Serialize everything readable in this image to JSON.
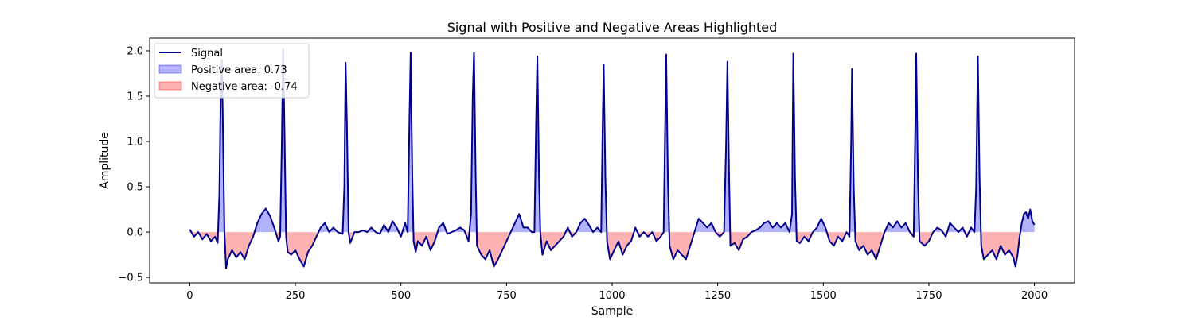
{
  "chart_data": {
    "type": "line",
    "title": "Signal with Positive and Negative Areas Highlighted",
    "xlabel": "Sample",
    "ylabel": "Amplitude",
    "xlim": [
      -95,
      2095
    ],
    "ylim": [
      -0.56,
      2.14
    ],
    "x_ticks": [
      0,
      250,
      500,
      750,
      1000,
      1250,
      1500,
      1750,
      2000
    ],
    "y_ticks": [
      -0.5,
      0.0,
      0.5,
      1.0,
      1.5,
      2.0
    ],
    "grid": false,
    "legend_position": "top-left",
    "colors": {
      "signal": "#00008b",
      "positive_fill": "#0000ff",
      "negative_fill": "#ff0000",
      "fill_opacity": 0.3
    },
    "legend": [
      {
        "label": "Signal",
        "kind": "line"
      },
      {
        "label": "Positive area: 0.73",
        "kind": "positive"
      },
      {
        "label": "Negative area: -0.74",
        "kind": "negative"
      }
    ],
    "series": [
      {
        "name": "Signal",
        "points": [
          [
            0,
            0.03
          ],
          [
            10,
            -0.05
          ],
          [
            20,
            0.0
          ],
          [
            30,
            -0.08
          ],
          [
            40,
            -0.02
          ],
          [
            50,
            -0.1
          ],
          [
            60,
            -0.05
          ],
          [
            66,
            -0.12
          ],
          [
            70,
            0.4
          ],
          [
            73,
            1.45
          ],
          [
            76,
            1.9
          ],
          [
            79,
            1.0
          ],
          [
            82,
            0.0
          ],
          [
            86,
            -0.4
          ],
          [
            90,
            -0.3
          ],
          [
            100,
            -0.2
          ],
          [
            110,
            -0.28
          ],
          [
            120,
            -0.22
          ],
          [
            130,
            -0.3
          ],
          [
            140,
            -0.15
          ],
          [
            150,
            -0.05
          ],
          [
            160,
            0.1
          ],
          [
            170,
            0.2
          ],
          [
            180,
            0.26
          ],
          [
            190,
            0.18
          ],
          [
            200,
            0.05
          ],
          [
            210,
            -0.1
          ],
          [
            214,
            -0.05
          ],
          [
            218,
            1.0
          ],
          [
            221,
            2.02
          ],
          [
            224,
            1.2
          ],
          [
            228,
            -0.05
          ],
          [
            232,
            -0.22
          ],
          [
            240,
            -0.25
          ],
          [
            250,
            -0.2
          ],
          [
            260,
            -0.3
          ],
          [
            270,
            -0.38
          ],
          [
            280,
            -0.22
          ],
          [
            290,
            -0.15
          ],
          [
            300,
            -0.05
          ],
          [
            310,
            0.05
          ],
          [
            320,
            0.1
          ],
          [
            330,
            0.0
          ],
          [
            340,
            0.05
          ],
          [
            350,
            0.0
          ],
          [
            362,
            -0.02
          ],
          [
            366,
            0.5
          ],
          [
            369,
            1.87
          ],
          [
            372,
            1.2
          ],
          [
            376,
            0.0
          ],
          [
            380,
            -0.12
          ],
          [
            390,
            0.0
          ],
          [
            400,
            0.0
          ],
          [
            410,
            0.02
          ],
          [
            420,
            0.0
          ],
          [
            430,
            0.05
          ],
          [
            440,
            0.0
          ],
          [
            450,
            -0.02
          ],
          [
            460,
            0.08
          ],
          [
            470,
            0.0
          ],
          [
            480,
            0.12
          ],
          [
            490,
            0.05
          ],
          [
            500,
            -0.05
          ],
          [
            510,
            0.1
          ],
          [
            516,
            0.0
          ],
          [
            520,
            1.2
          ],
          [
            523,
            1.98
          ],
          [
            527,
            0.6
          ],
          [
            530,
            -0.1
          ],
          [
            535,
            -0.22
          ],
          [
            540,
            -0.1
          ],
          [
            550,
            -0.15
          ],
          [
            560,
            -0.05
          ],
          [
            570,
            -0.2
          ],
          [
            580,
            -0.1
          ],
          [
            590,
            0.05
          ],
          [
            600,
            0.1
          ],
          [
            610,
            -0.02
          ],
          [
            620,
            0.0
          ],
          [
            630,
            0.02
          ],
          [
            640,
            0.05
          ],
          [
            650,
            0.02
          ],
          [
            660,
            -0.1
          ],
          [
            666,
            0.2
          ],
          [
            670,
            1.5
          ],
          [
            673,
            1.98
          ],
          [
            677,
            0.6
          ],
          [
            680,
            -0.15
          ],
          [
            690,
            -0.25
          ],
          [
            700,
            -0.3
          ],
          [
            710,
            -0.2
          ],
          [
            720,
            -0.38
          ],
          [
            730,
            -0.3
          ],
          [
            740,
            -0.2
          ],
          [
            750,
            -0.1
          ],
          [
            760,
            0.0
          ],
          [
            770,
            0.1
          ],
          [
            780,
            0.2
          ],
          [
            790,
            0.05
          ],
          [
            800,
            0.05
          ],
          [
            810,
            0.0
          ],
          [
            816,
            0.0
          ],
          [
            820,
            1.2
          ],
          [
            823,
            1.94
          ],
          [
            827,
            0.6
          ],
          [
            830,
            0.0
          ],
          [
            835,
            -0.25
          ],
          [
            845,
            -0.1
          ],
          [
            855,
            -0.2
          ],
          [
            865,
            -0.15
          ],
          [
            875,
            -0.1
          ],
          [
            885,
            -0.05
          ],
          [
            895,
            0.05
          ],
          [
            905,
            -0.05
          ],
          [
            915,
            0.0
          ],
          [
            925,
            0.1
          ],
          [
            935,
            0.15
          ],
          [
            945,
            0.08
          ],
          [
            955,
            0.0
          ],
          [
            965,
            0.05
          ],
          [
            974,
            0.0
          ],
          [
            978,
            1.3
          ],
          [
            980,
            1.85
          ],
          [
            984,
            0.6
          ],
          [
            988,
            -0.1
          ],
          [
            995,
            -0.3
          ],
          [
            1005,
            -0.2
          ],
          [
            1015,
            -0.1
          ],
          [
            1025,
            -0.25
          ],
          [
            1035,
            -0.15
          ],
          [
            1045,
            -0.1
          ],
          [
            1055,
            0.05
          ],
          [
            1065,
            -0.05
          ],
          [
            1075,
            0.0
          ],
          [
            1085,
            -0.05
          ],
          [
            1095,
            0.0
          ],
          [
            1105,
            -0.1
          ],
          [
            1115,
            -0.05
          ],
          [
            1122,
            0.0
          ],
          [
            1126,
            1.3
          ],
          [
            1128,
            1.96
          ],
          [
            1132,
            0.6
          ],
          [
            1136,
            -0.15
          ],
          [
            1145,
            -0.3
          ],
          [
            1155,
            -0.2
          ],
          [
            1165,
            -0.25
          ],
          [
            1175,
            -0.3
          ],
          [
            1185,
            -0.15
          ],
          [
            1195,
            0.0
          ],
          [
            1205,
            0.15
          ],
          [
            1215,
            0.1
          ],
          [
            1225,
            0.05
          ],
          [
            1235,
            0.1
          ],
          [
            1245,
            0.0
          ],
          [
            1255,
            -0.05
          ],
          [
            1265,
            0.0
          ],
          [
            1270,
            1.0
          ],
          [
            1273,
            1.88
          ],
          [
            1277,
            0.6
          ],
          [
            1280,
            -0.15
          ],
          [
            1290,
            -0.12
          ],
          [
            1300,
            -0.2
          ],
          [
            1310,
            -0.08
          ],
          [
            1320,
            -0.05
          ],
          [
            1330,
            0.0
          ],
          [
            1340,
            0.02
          ],
          [
            1350,
            0.05
          ],
          [
            1360,
            0.1
          ],
          [
            1370,
            0.12
          ],
          [
            1380,
            0.05
          ],
          [
            1390,
            0.1
          ],
          [
            1400,
            0.05
          ],
          [
            1410,
            0.1
          ],
          [
            1420,
            0.0
          ],
          [
            1426,
            0.2
          ],
          [
            1429,
            1.97
          ],
          [
            1433,
            0.6
          ],
          [
            1437,
            -0.1
          ],
          [
            1445,
            -0.12
          ],
          [
            1455,
            -0.05
          ],
          [
            1465,
            -0.1
          ],
          [
            1475,
            0.0
          ],
          [
            1485,
            0.05
          ],
          [
            1495,
            0.15
          ],
          [
            1505,
            0.05
          ],
          [
            1515,
            -0.1
          ],
          [
            1525,
            -0.15
          ],
          [
            1535,
            -0.05
          ],
          [
            1545,
            -0.1
          ],
          [
            1555,
            0.0
          ],
          [
            1562,
            -0.05
          ],
          [
            1566,
            1.0
          ],
          [
            1568,
            1.8
          ],
          [
            1572,
            0.5
          ],
          [
            1576,
            -0.1
          ],
          [
            1585,
            -0.2
          ],
          [
            1595,
            -0.15
          ],
          [
            1605,
            -0.25
          ],
          [
            1615,
            -0.2
          ],
          [
            1625,
            -0.3
          ],
          [
            1635,
            -0.15
          ],
          [
            1645,
            0.0
          ],
          [
            1655,
            0.1
          ],
          [
            1665,
            0.05
          ],
          [
            1675,
            0.12
          ],
          [
            1685,
            0.05
          ],
          [
            1695,
            0.1
          ],
          [
            1705,
            0.0
          ],
          [
            1714,
            -0.05
          ],
          [
            1718,
            1.2
          ],
          [
            1720,
            1.97
          ],
          [
            1724,
            0.6
          ],
          [
            1728,
            -0.1
          ],
          [
            1740,
            -0.15
          ],
          [
            1750,
            -0.1
          ],
          [
            1760,
            0.0
          ],
          [
            1770,
            0.05
          ],
          [
            1780,
            0.02
          ],
          [
            1790,
            -0.05
          ],
          [
            1800,
            0.1
          ],
          [
            1810,
            0.05
          ],
          [
            1820,
            0.0
          ],
          [
            1830,
            0.05
          ],
          [
            1840,
            -0.05
          ],
          [
            1850,
            0.05
          ],
          [
            1858,
            0.0
          ],
          [
            1862,
            0.5
          ],
          [
            1866,
            1.94
          ],
          [
            1870,
            0.6
          ],
          [
            1874,
            -0.15
          ],
          [
            1880,
            -0.3
          ],
          [
            1890,
            -0.25
          ],
          [
            1900,
            -0.2
          ],
          [
            1910,
            -0.3
          ],
          [
            1920,
            -0.15
          ],
          [
            1930,
            -0.25
          ],
          [
            1940,
            -0.2
          ],
          [
            1950,
            -0.28
          ],
          [
            1955,
            -0.38
          ],
          [
            1960,
            -0.25
          ],
          [
            1965,
            -0.05
          ],
          [
            1970,
            0.1
          ],
          [
            1975,
            0.2
          ],
          [
            1980,
            0.22
          ],
          [
            1985,
            0.15
          ],
          [
            1990,
            0.25
          ],
          [
            1995,
            0.12
          ],
          [
            2000,
            0.08
          ]
        ]
      }
    ]
  }
}
